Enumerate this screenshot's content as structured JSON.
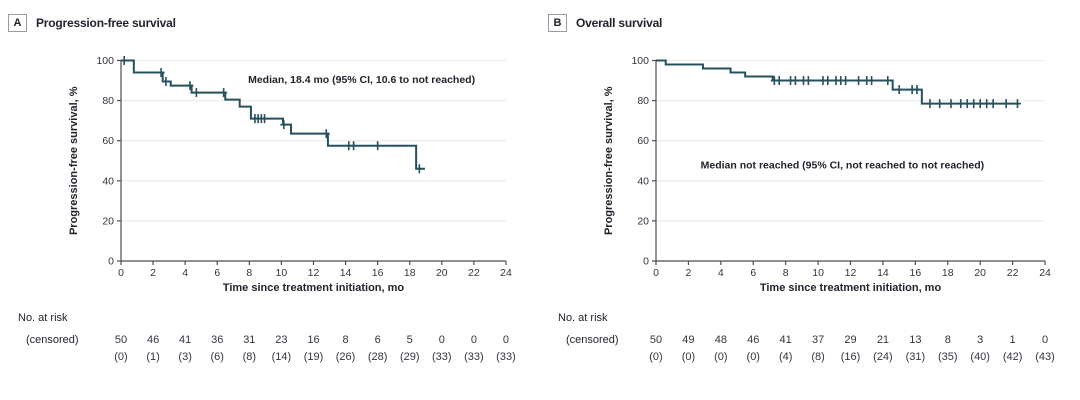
{
  "figure": {
    "risk_label_line1": "No. at risk",
    "risk_label_line2": "(censored)",
    "colors": {
      "curve": "#27505f",
      "grid": "#ebedec",
      "axis": "#4d4d55",
      "tick_text": "#34343f",
      "label_text": "#23232e"
    }
  },
  "chart_data": [
    {
      "type": "line",
      "subtype": "kaplan-meier",
      "panel_letter": "A",
      "title": "Progression-free survival",
      "annotation": "Median, 18.4 mo (95% CI, 10.6 to not reached)",
      "annotation_pos": {
        "x": 15,
        "y": 90.5
      },
      "xlabel": "Time since treatment initiation, mo",
      "ylabel": "Progression-free survival, %",
      "xlim": [
        0,
        24
      ],
      "ylim": [
        0,
        100
      ],
      "xticks": [
        0,
        2,
        4,
        6,
        8,
        10,
        12,
        14,
        16,
        18,
        20,
        22,
        24
      ],
      "yticks": [
        0,
        20,
        40,
        60,
        80,
        100
      ],
      "grid": "horizontal",
      "km_steps": [
        [
          0,
          100
        ],
        [
          0.8,
          94
        ],
        [
          2.6,
          89.5
        ],
        [
          3.1,
          87.5
        ],
        [
          4.4,
          84
        ],
        [
          6.5,
          80.5
        ],
        [
          7.4,
          77
        ],
        [
          8.1,
          71
        ],
        [
          10.1,
          68
        ],
        [
          10.6,
          63.5
        ],
        [
          12.9,
          57.5
        ],
        [
          18.4,
          46
        ],
        [
          18.95,
          46
        ]
      ],
      "censor_marks": [
        [
          0.2,
          100
        ],
        [
          2.5,
          94
        ],
        [
          2.8,
          89.5
        ],
        [
          4.3,
          87.5
        ],
        [
          4.7,
          84
        ],
        [
          6.4,
          84
        ],
        [
          8.35,
          71
        ],
        [
          8.55,
          71
        ],
        [
          8.75,
          71
        ],
        [
          8.95,
          71
        ],
        [
          10.15,
          68
        ],
        [
          12.8,
          63.5
        ],
        [
          14.2,
          57.5
        ],
        [
          14.5,
          57.5
        ],
        [
          16.0,
          57.5
        ],
        [
          18.6,
          46
        ]
      ],
      "at_risk": [
        "50",
        "46",
        "41",
        "36",
        "31",
        "23",
        "16",
        "8",
        "6",
        "5",
        "0",
        "0",
        "0"
      ],
      "censored": [
        "(0)",
        "(1)",
        "(3)",
        "(6)",
        "(8)",
        "(14)",
        "(19)",
        "(26)",
        "(28)",
        "(29)",
        "(33)",
        "(33)",
        "(33)"
      ]
    },
    {
      "type": "line",
      "subtype": "kaplan-meier",
      "panel_letter": "B",
      "title": "Overall survival",
      "annotation": "Median not reached (95% CI, not reached to not reached)",
      "annotation_pos": {
        "x": 11.5,
        "y": 48
      },
      "xlabel": "Time since treatment initiation, mo",
      "ylabel": "Progression-free survival, %",
      "xlim": [
        0,
        24
      ],
      "ylim": [
        0,
        100
      ],
      "xticks": [
        0,
        2,
        4,
        6,
        8,
        10,
        12,
        14,
        16,
        18,
        20,
        22,
        24
      ],
      "yticks": [
        0,
        20,
        40,
        60,
        80,
        100
      ],
      "grid": "horizontal",
      "km_steps": [
        [
          0,
          100
        ],
        [
          0.6,
          98
        ],
        [
          2.9,
          96
        ],
        [
          4.6,
          94
        ],
        [
          5.5,
          92
        ],
        [
          7.2,
          90
        ],
        [
          14.6,
          85.5
        ],
        [
          16.4,
          78.5
        ],
        [
          22.4,
          78.5
        ]
      ],
      "censor_marks": [
        [
          7.3,
          90
        ],
        [
          7.6,
          90
        ],
        [
          8.3,
          90
        ],
        [
          8.6,
          90
        ],
        [
          9.1,
          90
        ],
        [
          9.4,
          90
        ],
        [
          10.3,
          90
        ],
        [
          10.6,
          90
        ],
        [
          11.1,
          90
        ],
        [
          11.4,
          90
        ],
        [
          11.7,
          90
        ],
        [
          12.5,
          90
        ],
        [
          13.0,
          90
        ],
        [
          13.3,
          90
        ],
        [
          14.3,
          90
        ],
        [
          15.0,
          85.5
        ],
        [
          15.8,
          85.5
        ],
        [
          16.1,
          85.5
        ],
        [
          16.9,
          78.5
        ],
        [
          17.5,
          78.5
        ],
        [
          18.2,
          78.5
        ],
        [
          18.8,
          78.5
        ],
        [
          19.2,
          78.5
        ],
        [
          19.6,
          78.5
        ],
        [
          20.0,
          78.5
        ],
        [
          20.4,
          78.5
        ],
        [
          20.8,
          78.5
        ],
        [
          21.6,
          78.5
        ],
        [
          22.3,
          78.5
        ]
      ],
      "at_risk": [
        "50",
        "49",
        "48",
        "46",
        "41",
        "37",
        "29",
        "21",
        "13",
        "8",
        "3",
        "1",
        "0"
      ],
      "censored": [
        "(0)",
        "(0)",
        "(0)",
        "(0)",
        "(4)",
        "(8)",
        "(16)",
        "(24)",
        "(31)",
        "(35)",
        "(40)",
        "(42)",
        "(43)"
      ]
    }
  ]
}
